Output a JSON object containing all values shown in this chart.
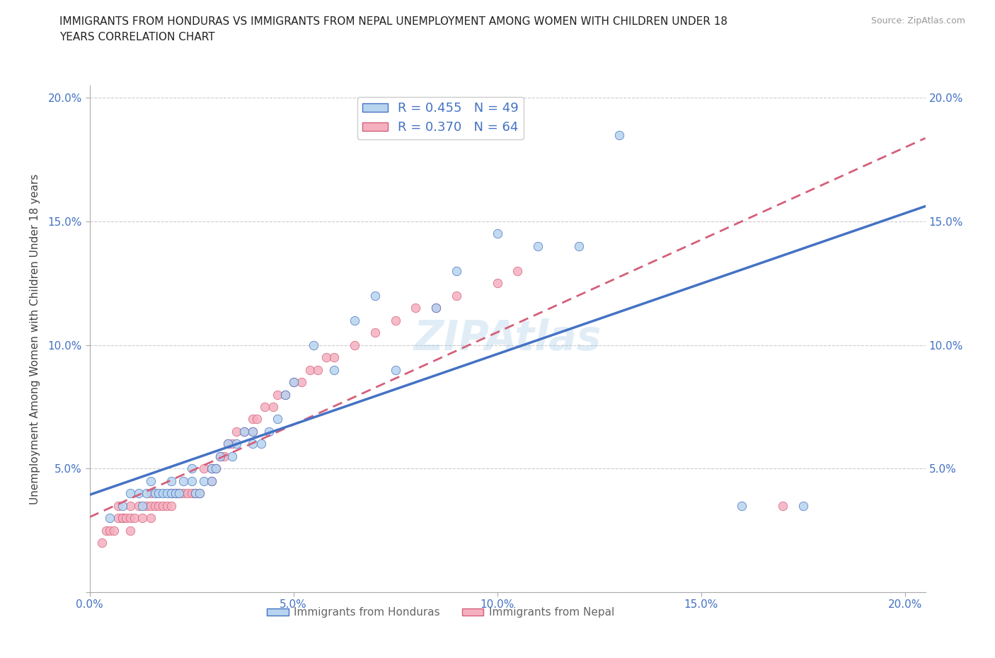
{
  "title_line1": "IMMIGRANTS FROM HONDURAS VS IMMIGRANTS FROM NEPAL UNEMPLOYMENT AMONG WOMEN WITH CHILDREN UNDER 18",
  "title_line2": "YEARS CORRELATION CHART",
  "source": "Source: ZipAtlas.com",
  "ylabel": "Unemployment Among Women with Children Under 18 years",
  "xlim": [
    0.0,
    0.205
  ],
  "ylim": [
    0.0,
    0.205
  ],
  "xticks": [
    0.0,
    0.05,
    0.1,
    0.15,
    0.2
  ],
  "yticks": [
    0.0,
    0.05,
    0.1,
    0.15,
    0.2
  ],
  "xticklabels": [
    "0.0%",
    "5.0%",
    "10.0%",
    "15.0%",
    "20.0%"
  ],
  "yticklabels_left": [
    "",
    "5.0%",
    "10.0%",
    "15.0%",
    "20.0%"
  ],
  "yticklabels_right": [
    "",
    "5.0%",
    "10.0%",
    "15.0%",
    "20.0%"
  ],
  "legend_label_1": "Immigrants from Honduras",
  "legend_label_2": "Immigrants from Nepal",
  "R1": 0.455,
  "N1": 49,
  "R2": 0.37,
  "N2": 64,
  "color1": "#b8d4ee",
  "color2": "#f5b0c0",
  "line_color1": "#4472c4",
  "line_color2": "#d4607a",
  "watermark": "ZIPAtlas",
  "background_color": "#ffffff",
  "honduras_x": [
    0.005,
    0.008,
    0.01,
    0.012,
    0.013,
    0.014,
    0.015,
    0.016,
    0.017,
    0.018,
    0.019,
    0.02,
    0.02,
    0.021,
    0.022,
    0.023,
    0.025,
    0.025,
    0.026,
    0.027,
    0.028,
    0.03,
    0.03,
    0.031,
    0.032,
    0.034,
    0.035,
    0.036,
    0.038,
    0.04,
    0.04,
    0.042,
    0.044,
    0.046,
    0.048,
    0.05,
    0.055,
    0.06,
    0.065,
    0.07,
    0.075,
    0.085,
    0.09,
    0.1,
    0.11,
    0.12,
    0.13,
    0.16,
    0.175
  ],
  "honduras_y": [
    0.03,
    0.035,
    0.04,
    0.04,
    0.035,
    0.04,
    0.045,
    0.04,
    0.04,
    0.04,
    0.04,
    0.04,
    0.045,
    0.04,
    0.04,
    0.045,
    0.045,
    0.05,
    0.04,
    0.04,
    0.045,
    0.045,
    0.05,
    0.05,
    0.055,
    0.06,
    0.055,
    0.06,
    0.065,
    0.06,
    0.065,
    0.06,
    0.065,
    0.07,
    0.08,
    0.085,
    0.1,
    0.09,
    0.11,
    0.12,
    0.09,
    0.115,
    0.13,
    0.145,
    0.14,
    0.14,
    0.185,
    0.035,
    0.035
  ],
  "nepal_x": [
    0.003,
    0.004,
    0.005,
    0.006,
    0.007,
    0.007,
    0.008,
    0.008,
    0.009,
    0.01,
    0.01,
    0.01,
    0.011,
    0.012,
    0.013,
    0.014,
    0.015,
    0.015,
    0.015,
    0.016,
    0.017,
    0.018,
    0.019,
    0.02,
    0.02,
    0.021,
    0.022,
    0.023,
    0.024,
    0.025,
    0.026,
    0.027,
    0.028,
    0.03,
    0.03,
    0.031,
    0.032,
    0.033,
    0.034,
    0.035,
    0.036,
    0.038,
    0.04,
    0.04,
    0.041,
    0.043,
    0.045,
    0.046,
    0.048,
    0.05,
    0.052,
    0.054,
    0.056,
    0.058,
    0.06,
    0.065,
    0.07,
    0.075,
    0.08,
    0.085,
    0.09,
    0.1,
    0.105,
    0.17
  ],
  "nepal_y": [
    0.02,
    0.025,
    0.025,
    0.025,
    0.03,
    0.035,
    0.03,
    0.03,
    0.03,
    0.025,
    0.03,
    0.035,
    0.03,
    0.035,
    0.03,
    0.035,
    0.03,
    0.035,
    0.04,
    0.035,
    0.035,
    0.035,
    0.035,
    0.035,
    0.04,
    0.04,
    0.04,
    0.04,
    0.04,
    0.04,
    0.04,
    0.04,
    0.05,
    0.045,
    0.05,
    0.05,
    0.055,
    0.055,
    0.06,
    0.06,
    0.065,
    0.065,
    0.065,
    0.07,
    0.07,
    0.075,
    0.075,
    0.08,
    0.08,
    0.085,
    0.085,
    0.09,
    0.09,
    0.095,
    0.095,
    0.1,
    0.105,
    0.11,
    0.115,
    0.115,
    0.12,
    0.125,
    0.13,
    0.035
  ]
}
